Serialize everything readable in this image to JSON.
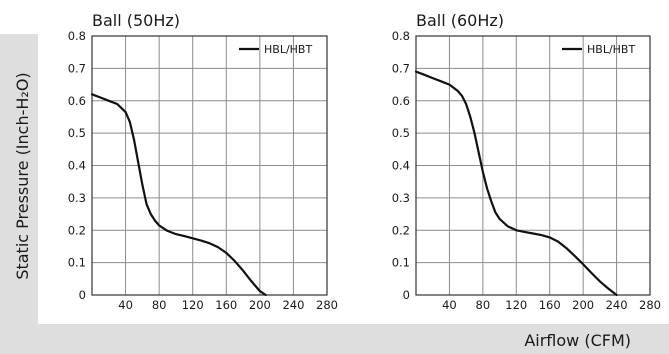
{
  "chart_data": [
    {
      "type": "line",
      "title": "Ball (50Hz)",
      "xlabel": "Airflow (CFM)",
      "ylabel": "Static Pressure (Inch-H₂O)",
      "xlim": [
        0,
        280
      ],
      "ylim": [
        0,
        0.8
      ],
      "xticks": [
        40,
        80,
        120,
        160,
        200,
        240,
        280
      ],
      "yticks": [
        0,
        0.1,
        0.2,
        0.3,
        0.4,
        0.5,
        0.6,
        0.7,
        0.8
      ],
      "ytick_labels": [
        "0",
        "0.1",
        "0.2",
        "0.3",
        "0.4",
        "0.5",
        "0.6",
        "0.7",
        "0.8"
      ],
      "grid": true,
      "legend": "top-right",
      "series": [
        {
          "name": "HBL/HBT",
          "color": "#111111",
          "x": [
            0,
            10,
            20,
            30,
            40,
            45,
            50,
            55,
            60,
            65,
            70,
            75,
            80,
            90,
            100,
            110,
            120,
            130,
            140,
            150,
            160,
            170,
            180,
            190,
            200,
            207
          ],
          "y": [
            0.62,
            0.61,
            0.6,
            0.59,
            0.565,
            0.535,
            0.48,
            0.41,
            0.34,
            0.28,
            0.25,
            0.23,
            0.215,
            0.198,
            0.188,
            0.182,
            0.175,
            0.168,
            0.16,
            0.148,
            0.13,
            0.105,
            0.075,
            0.042,
            0.012,
            0.0
          ]
        }
      ]
    },
    {
      "type": "line",
      "title": "Ball (60Hz)",
      "xlabel": "Airflow (CFM)",
      "ylabel": "Static Pressure (Inch-H₂O)",
      "xlim": [
        0,
        280
      ],
      "ylim": [
        0,
        0.8
      ],
      "xticks": [
        40,
        80,
        120,
        160,
        200,
        240,
        280
      ],
      "yticks": [
        0,
        0.1,
        0.2,
        0.3,
        0.4,
        0.5,
        0.6,
        0.7,
        0.8
      ],
      "ytick_labels": [
        "0",
        "0.1",
        "0.2",
        "0.3",
        "0.4",
        "0.5",
        "0.6",
        "0.7",
        "0.8"
      ],
      "grid": true,
      "legend": "top-right",
      "series": [
        {
          "name": "HBL/HBT",
          "color": "#111111",
          "x": [
            0,
            10,
            20,
            30,
            40,
            45,
            50,
            55,
            60,
            65,
            70,
            75,
            80,
            85,
            90,
            95,
            100,
            110,
            120,
            130,
            140,
            150,
            160,
            170,
            180,
            190,
            200,
            210,
            220,
            230,
            240
          ],
          "y": [
            0.69,
            0.68,
            0.67,
            0.66,
            0.65,
            0.64,
            0.63,
            0.615,
            0.59,
            0.55,
            0.5,
            0.44,
            0.38,
            0.33,
            0.29,
            0.255,
            0.235,
            0.212,
            0.2,
            0.195,
            0.19,
            0.185,
            0.178,
            0.165,
            0.145,
            0.12,
            0.095,
            0.068,
            0.042,
            0.02,
            0.0
          ]
        }
      ]
    }
  ],
  "shared_ylabel": "Static Pressure (Inch-H₂O)",
  "shared_xlabel": "Airflow (CFM)",
  "colors": {
    "band": "#dedede",
    "curve": "#111111",
    "grid": "#8c8c8c"
  }
}
